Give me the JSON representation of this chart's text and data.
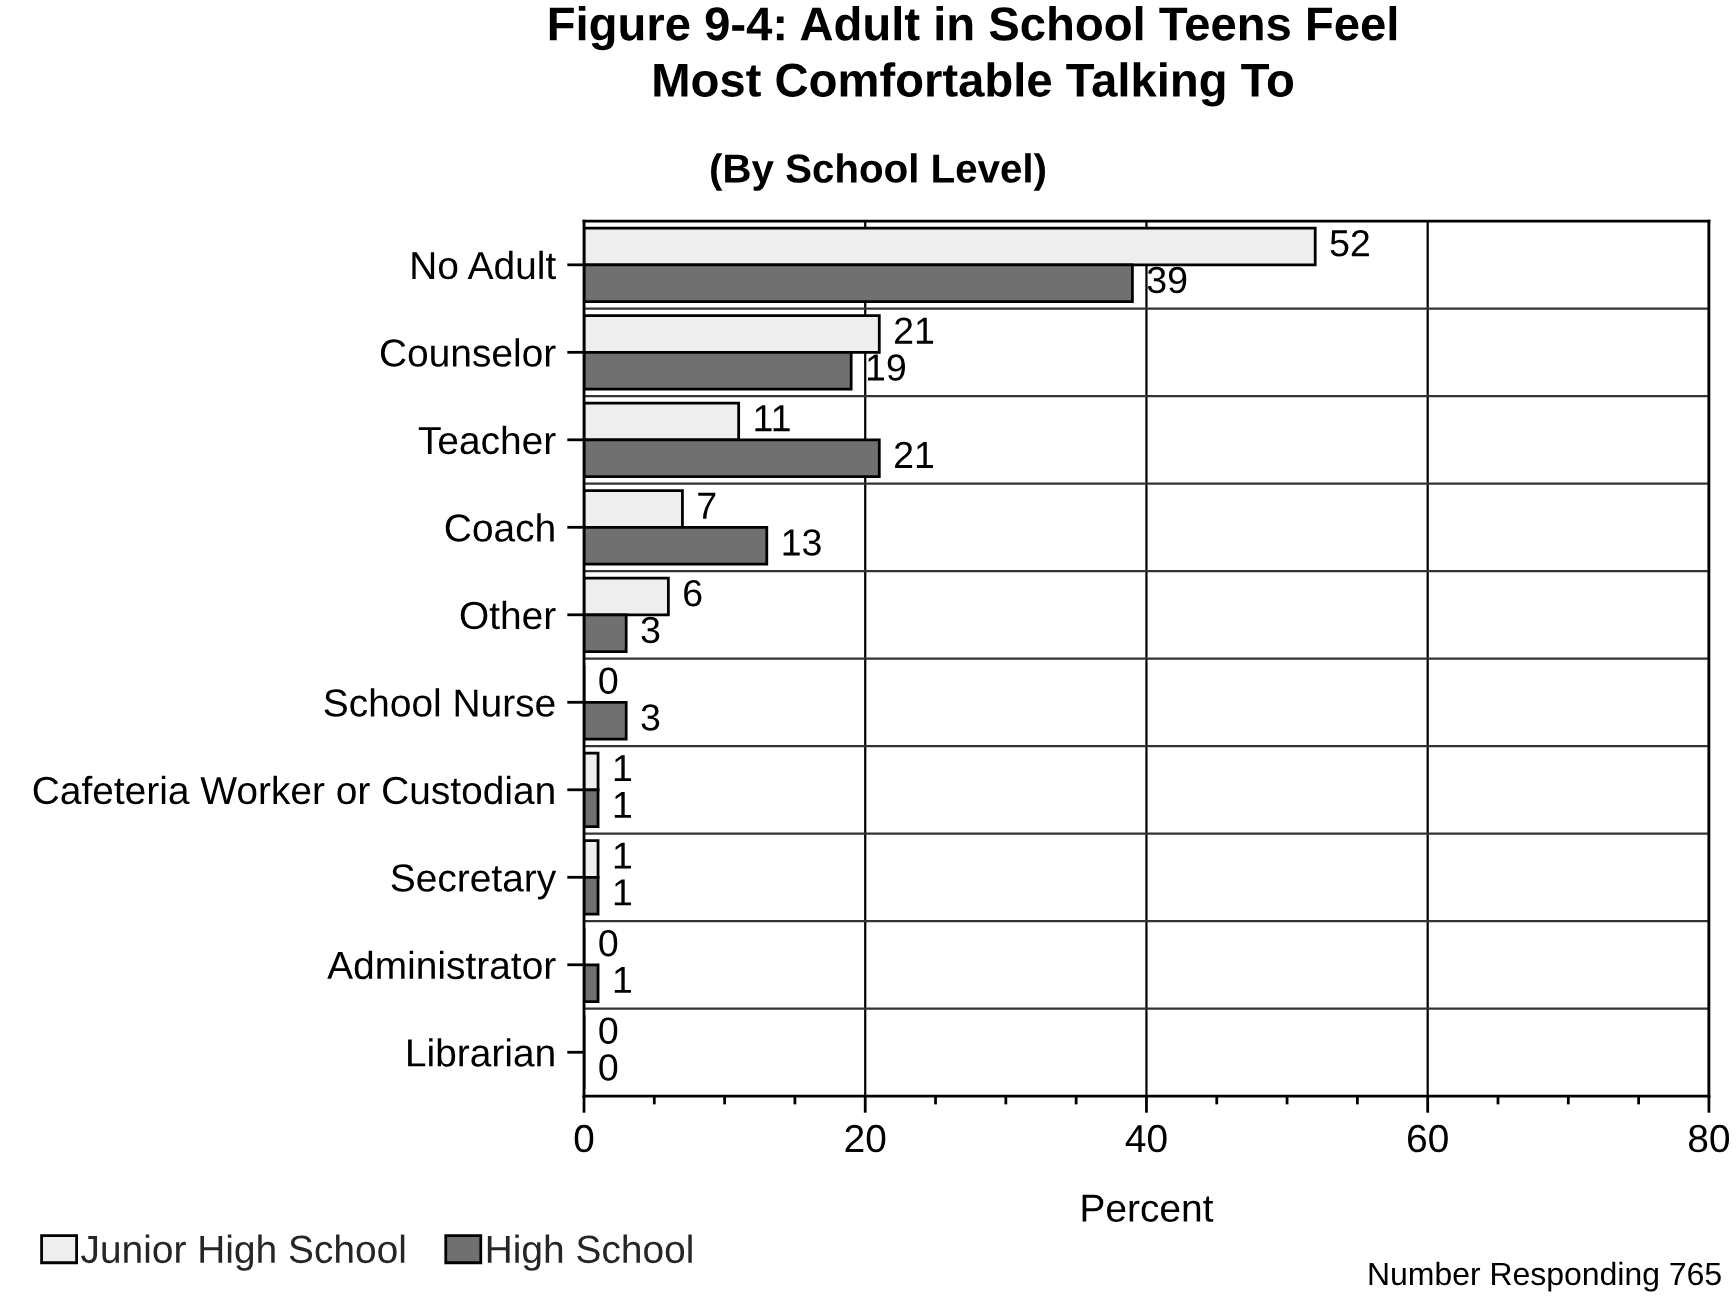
{
  "chart_data": {
    "type": "bar",
    "orientation": "horizontal",
    "title": "Figure 9-4: Adult in School Teens Feel\nMost Comfortable Talking To",
    "subtitle": "(By School Level)",
    "xlabel": "Percent",
    "categories": [
      "No Adult",
      "Counselor",
      "Teacher",
      "Coach",
      "Other",
      "School Nurse",
      "Cafeteria Worker or Custodian",
      "Secretary",
      "Administrator",
      "Librarian"
    ],
    "series": [
      {
        "name": "Junior High School",
        "color": "#eeeeee",
        "values": [
          52,
          21,
          11,
          7,
          6,
          0,
          1,
          1,
          0,
          0
        ]
      },
      {
        "name": "High School",
        "color": "#707070",
        "values": [
          39,
          19,
          21,
          13,
          3,
          3,
          1,
          1,
          1,
          0
        ]
      }
    ],
    "xlim": [
      0,
      80
    ],
    "xticks": [
      0,
      {
        "value": 5,
        "label": null
      },
      {
        "value": 10,
        "label": null
      },
      {
        "value": 15,
        "label": null
      },
      20,
      {
        "value": 25,
        "label": null
      },
      {
        "value": 30,
        "label": null
      },
      {
        "value": 35,
        "label": null
      },
      40,
      {
        "value": 45,
        "label": null
      },
      {
        "value": 50,
        "label": null
      },
      {
        "value": 55,
        "label": null
      },
      60,
      {
        "value": 65,
        "label": null
      },
      {
        "value": 70,
        "label": null
      },
      {
        "value": 75,
        "label": null
      },
      80
    ],
    "grid": true,
    "legend": "bottom left",
    "data_labels": true,
    "annotations": [
      "Number Responding 765"
    ]
  }
}
